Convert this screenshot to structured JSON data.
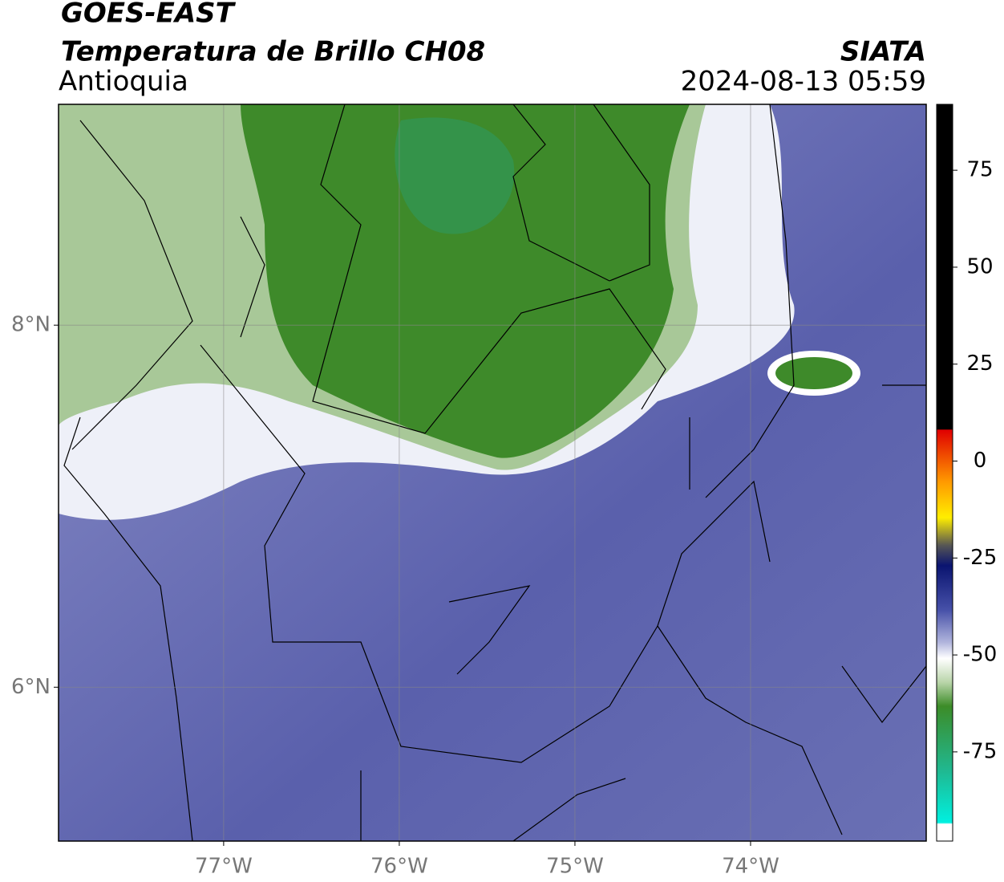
{
  "header": {
    "title": "GOES-EAST",
    "subtitle": "Temperatura de Brillo CH08",
    "region": "Antioquia",
    "source": "SIATA",
    "timestamp": "2024-08-13 05:59"
  },
  "map": {
    "xlim": [
      -77.94,
      -73.0
    ],
    "ylim": [
      5.15,
      9.22
    ],
    "xticks": [
      {
        "value": -77,
        "label": "77°W"
      },
      {
        "value": -76,
        "label": "76°W"
      },
      {
        "value": -75,
        "label": "75°W"
      },
      {
        "value": -74,
        "label": "74°W"
      }
    ],
    "yticks": [
      {
        "value": 8,
        "label": "8°N"
      },
      {
        "value": 6,
        "label": "6°N"
      }
    ],
    "grid": true
  },
  "colorbar": {
    "lim": [
      -98,
      92
    ],
    "ticks": [
      75,
      50,
      25,
      0,
      -25,
      -50,
      -75
    ]
  }
}
